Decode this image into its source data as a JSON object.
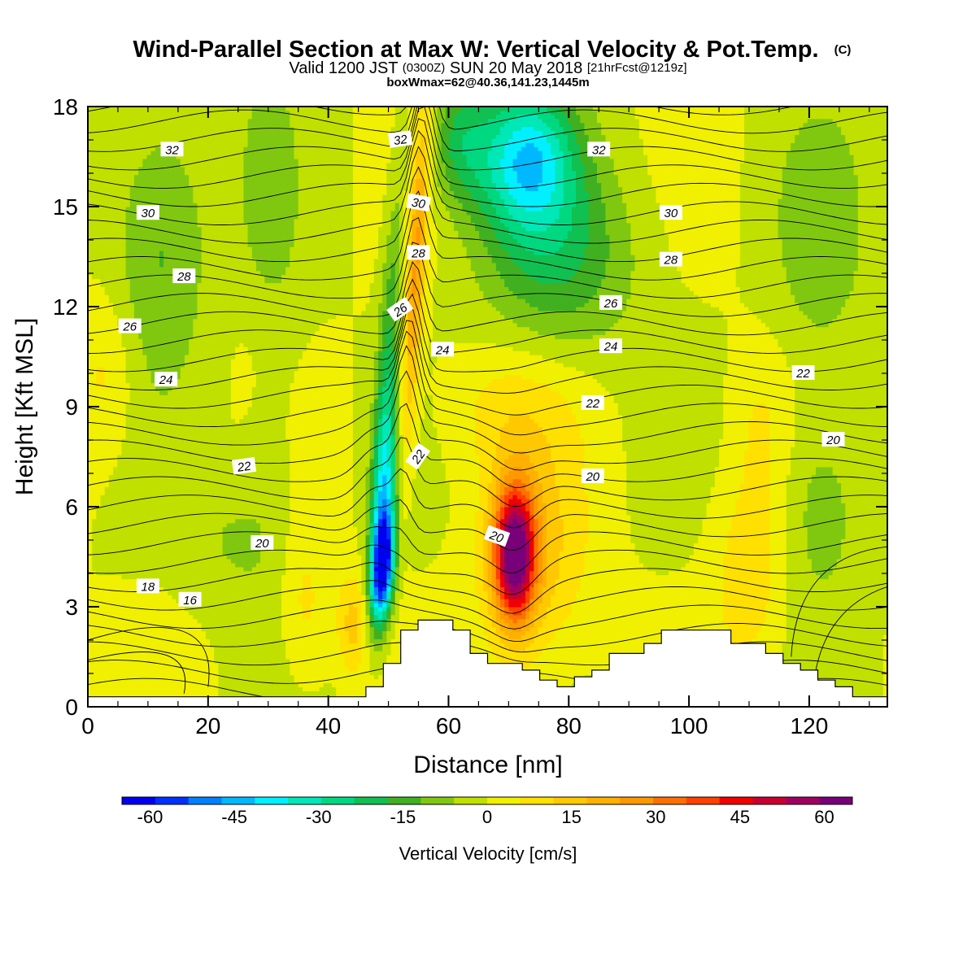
{
  "chart_data": {
    "type": "heatmap",
    "title": "Wind-Parallel Section at Max W: Vertical Velocity & Pot.Temp.",
    "title_mark": "(C)",
    "subtitle_main": "Valid 1200 JST",
    "subtitle_utc": "(0300Z)",
    "subtitle_date": "SUN 20 May 2018",
    "subtitle_fcst": "[21hrFcst@1219z]",
    "box_info": "boxWmax=62@40.36,141.23,1445m",
    "xlabel": "Distance [nm]",
    "ylabel": "Height [Kft MSL]",
    "xlim": [
      0,
      133
    ],
    "ylim": [
      0,
      18
    ],
    "xticks": [
      0,
      20,
      40,
      60,
      80,
      100,
      120
    ],
    "yticks": [
      0,
      3,
      6,
      9,
      12,
      15,
      18
    ],
    "colorbar": {
      "label": "Vertical Velocity [cm/s]",
      "range": [
        -65,
        65
      ],
      "tick_values": [
        -60,
        -45,
        -30,
        -15,
        0,
        15,
        30,
        45,
        60
      ],
      "colors": [
        "#0000f0",
        "#0030ff",
        "#0080ff",
        "#00b8ff",
        "#00f0ff",
        "#00e8b8",
        "#00d880",
        "#10c050",
        "#40b020",
        "#80c810",
        "#c0e000",
        "#f0f000",
        "#ffe000",
        "#ffc800",
        "#ffb000",
        "#ff9800",
        "#ff7000",
        "#ff4000",
        "#f00000",
        "#c80030",
        "#a00060",
        "#780078"
      ]
    },
    "contour_field": "Potential Temperature",
    "contour_labels": [
      "32",
      "30",
      "28",
      "26",
      "24",
      "22",
      "20",
      "18",
      "16",
      "32",
      "30",
      "28",
      "26",
      "24",
      "22",
      "22",
      "20",
      "20",
      "32",
      "30",
      "28",
      "26",
      "24",
      "22",
      "20"
    ],
    "field_features": [
      {
        "x": 71,
        "y": 4.6,
        "w": 62,
        "kind": "updraft core"
      },
      {
        "x": 50,
        "y": 4.0,
        "w": -60,
        "kind": "downdraft core"
      },
      {
        "x": 52,
        "y": 14,
        "w": 22,
        "kind": "upper updraft plume"
      },
      {
        "x": 73,
        "y": 16.5,
        "w": -35,
        "kind": "upper downdraft"
      }
    ],
    "terrain_heights": [
      0.3,
      0.3,
      0.3,
      0.3,
      0.3,
      0.3,
      0.3,
      0.3,
      0.3,
      0.3,
      0.3,
      0.3,
      0.3,
      0.3,
      0.3,
      0.3,
      0.6,
      1.3,
      2.3,
      2.6,
      2.6,
      2.3,
      1.6,
      1.3,
      1.3,
      1.1,
      0.8,
      0.6,
      0.9,
      1.1,
      1.6,
      1.6,
      1.9,
      2.3,
      2.3,
      2.3,
      2.3,
      1.9,
      1.9,
      1.6,
      1.3,
      1.1,
      0.8,
      0.6,
      0.3,
      0.3
    ]
  }
}
